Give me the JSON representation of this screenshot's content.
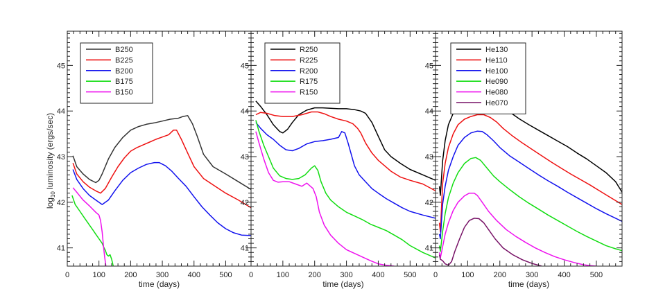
{
  "figure": {
    "ylabel_prefix": "log",
    "ylabel_sub": "10",
    "ylabel_suffix": " luminosity (ergs/sec)"
  },
  "chart_data": [
    {
      "type": "line",
      "title": "",
      "xlabel": "time (days)",
      "ylabel": "log10 luminosity (ergs/sec)",
      "xlim": [
        0,
        580
      ],
      "ylim": [
        40.6,
        45.75
      ],
      "xticks": [
        0,
        100,
        200,
        300,
        400,
        500
      ],
      "yticks": [
        41,
        42,
        43,
        44,
        45
      ],
      "legend_location": "top-left",
      "series": [
        {
          "name": "B250",
          "color": "#333333",
          "x": [
            18,
            30,
            50,
            70,
            90,
            100,
            110,
            130,
            150,
            175,
            200,
            225,
            250,
            275,
            300,
            325,
            350,
            365,
            380,
            395,
            410,
            430,
            460,
            500,
            540,
            580
          ],
          "y": [
            43.02,
            42.78,
            42.62,
            42.5,
            42.43,
            42.48,
            42.62,
            42.95,
            43.2,
            43.42,
            43.58,
            43.66,
            43.71,
            43.74,
            43.78,
            43.82,
            43.84,
            43.88,
            43.9,
            43.72,
            43.45,
            43.05,
            42.78,
            42.62,
            42.45,
            42.28
          ]
        },
        {
          "name": "B225",
          "color": "#ee1111",
          "x": [
            18,
            30,
            50,
            70,
            90,
            105,
            120,
            140,
            160,
            180,
            200,
            220,
            240,
            260,
            280,
            300,
            320,
            335,
            345,
            360,
            380,
            400,
            430,
            460,
            500,
            540,
            580
          ],
          "y": [
            42.86,
            42.62,
            42.45,
            42.33,
            42.25,
            42.2,
            42.3,
            42.55,
            42.78,
            42.97,
            43.12,
            43.2,
            43.26,
            43.32,
            43.38,
            43.43,
            43.48,
            43.58,
            43.58,
            43.38,
            43.08,
            42.78,
            42.52,
            42.38,
            42.2,
            42.05,
            41.88
          ]
        },
        {
          "name": "B200",
          "color": "#1111ee",
          "x": [
            18,
            30,
            50,
            70,
            90,
            110,
            130,
            150,
            175,
            200,
            225,
            250,
            275,
            290,
            310,
            330,
            350,
            375,
            400,
            425,
            450,
            475,
            500,
            525,
            550,
            580
          ],
          "y": [
            42.72,
            42.5,
            42.3,
            42.15,
            42.05,
            41.95,
            42.05,
            42.25,
            42.48,
            42.65,
            42.75,
            42.83,
            42.87,
            42.87,
            42.8,
            42.68,
            42.53,
            42.35,
            42.12,
            41.9,
            41.72,
            41.55,
            41.42,
            41.33,
            41.28,
            41.27
          ]
        },
        {
          "name": "B175",
          "color": "#11dd11",
          "x": [
            15,
            25,
            40,
            55,
            70,
            80,
            90,
            100,
            105,
            110,
            115,
            120,
            125,
            130,
            135,
            140,
            145
          ],
          "y": [
            42.15,
            41.95,
            41.8,
            41.65,
            41.5,
            41.4,
            41.3,
            41.2,
            41.15,
            41.1,
            41.02,
            40.95,
            40.85,
            40.82,
            40.85,
            40.75,
            40.6
          ]
        },
        {
          "name": "B150",
          "color": "#ee11ee",
          "x": [
            18,
            30,
            50,
            70,
            90,
            100,
            105,
            110,
            115,
            118,
            120,
            122
          ],
          "y": [
            42.32,
            42.22,
            42.05,
            41.92,
            41.78,
            41.72,
            41.6,
            41.35,
            41.0,
            40.8,
            40.7,
            40.6
          ]
        }
      ]
    },
    {
      "type": "line",
      "title": "",
      "xlabel": "time (days)",
      "ylabel": "",
      "xlim": [
        0,
        580
      ],
      "ylim": [
        40.6,
        45.75
      ],
      "xticks": [
        0,
        100,
        200,
        300,
        400,
        500
      ],
      "yticks": [
        41,
        42,
        43,
        44,
        45
      ],
      "legend_location": "top-left",
      "series": [
        {
          "name": "R250",
          "color": "#000000",
          "x": [
            15,
            30,
            50,
            70,
            90,
            100,
            115,
            130,
            150,
            175,
            200,
            225,
            250,
            275,
            300,
            325,
            345,
            360,
            380,
            400,
            420,
            440,
            470,
            500,
            540,
            580
          ],
          "y": [
            44.22,
            44.1,
            43.92,
            43.7,
            43.55,
            43.52,
            43.6,
            43.75,
            43.92,
            44.02,
            44.07,
            44.07,
            44.06,
            44.05,
            44.05,
            44.03,
            44.0,
            43.95,
            43.75,
            43.45,
            43.15,
            43.0,
            42.85,
            42.72,
            42.6,
            42.48
          ]
        },
        {
          "name": "R225",
          "color": "#ee1111",
          "x": [
            15,
            30,
            50,
            75,
            100,
            130,
            160,
            190,
            210,
            230,
            250,
            275,
            300,
            320,
            335,
            345,
            360,
            380,
            400,
            420,
            440,
            470,
            500,
            540,
            580
          ],
          "y": [
            43.92,
            43.97,
            43.95,
            43.9,
            43.88,
            43.88,
            43.92,
            43.98,
            43.98,
            43.94,
            43.88,
            43.82,
            43.78,
            43.72,
            43.62,
            43.52,
            43.3,
            43.08,
            42.92,
            42.8,
            42.68,
            42.55,
            42.48,
            42.4,
            42.25
          ]
        },
        {
          "name": "R200",
          "color": "#1111ee",
          "x": [
            15,
            30,
            50,
            70,
            90,
            110,
            130,
            150,
            175,
            200,
            225,
            250,
            275,
            285,
            295,
            305,
            315,
            325,
            340,
            360,
            380,
            400,
            425,
            450,
            475,
            500,
            540,
            580
          ],
          "y": [
            43.75,
            43.62,
            43.48,
            43.38,
            43.25,
            43.15,
            43.13,
            43.18,
            43.28,
            43.33,
            43.35,
            43.38,
            43.42,
            43.55,
            43.52,
            43.3,
            43.05,
            42.8,
            42.6,
            42.45,
            42.3,
            42.2,
            42.08,
            41.98,
            41.88,
            41.8,
            41.72,
            41.65
          ]
        },
        {
          "name": "R175",
          "color": "#11dd11",
          "x": [
            15,
            25,
            40,
            55,
            70,
            90,
            110,
            130,
            150,
            170,
            190,
            200,
            210,
            220,
            235,
            250,
            275,
            300,
            325,
            350,
            375,
            400,
            425,
            450,
            475,
            500,
            540,
            580
          ],
          "y": [
            43.8,
            43.55,
            43.25,
            43.0,
            42.75,
            42.58,
            42.52,
            42.5,
            42.52,
            42.6,
            42.75,
            42.8,
            42.7,
            42.45,
            42.2,
            42.05,
            41.9,
            41.78,
            41.7,
            41.62,
            41.52,
            41.45,
            41.38,
            41.28,
            41.18,
            41.05,
            40.9,
            40.78
          ]
        },
        {
          "name": "R150",
          "color": "#ee11ee",
          "x": [
            15,
            25,
            40,
            55,
            70,
            85,
            100,
            120,
            140,
            160,
            175,
            185,
            195,
            205,
            215,
            230,
            250,
            275,
            300,
            325,
            350,
            375,
            400,
            425,
            450
          ],
          "y": [
            43.55,
            43.3,
            42.95,
            42.65,
            42.48,
            42.44,
            42.45,
            42.45,
            42.4,
            42.35,
            42.42,
            42.36,
            42.3,
            42.12,
            41.78,
            41.5,
            41.28,
            41.1,
            40.96,
            40.88,
            40.8,
            40.72,
            40.65,
            40.62,
            40.6
          ]
        }
      ]
    },
    {
      "type": "line",
      "title": "",
      "xlabel": "time (days)",
      "ylabel": "",
      "xlim": [
        0,
        580
      ],
      "ylim": [
        40.6,
        45.75
      ],
      "xticks": [
        0,
        100,
        200,
        300,
        400,
        500
      ],
      "yticks": [
        41,
        42,
        43,
        44,
        45
      ],
      "legend_location": "top-left",
      "series": [
        {
          "name": "He130",
          "color": "#000000",
          "x": [
            12,
            15,
            22,
            30,
            40,
            55,
            70,
            90,
            110,
            130,
            150,
            170,
            190,
            210,
            230,
            260,
            290,
            320,
            350,
            380,
            410,
            440,
            470,
            500,
            530,
            560,
            580
          ],
          "y": [
            42.35,
            42.15,
            42.9,
            43.35,
            43.7,
            43.95,
            44.1,
            44.2,
            44.26,
            44.3,
            44.31,
            44.29,
            44.22,
            44.1,
            43.98,
            43.83,
            43.7,
            43.58,
            43.46,
            43.34,
            43.22,
            43.08,
            42.95,
            42.8,
            42.65,
            42.45,
            42.22
          ]
        },
        {
          "name": "He110",
          "color": "#ee1111",
          "x": [
            12,
            15,
            22,
            30,
            40,
            55,
            70,
            90,
            110,
            130,
            150,
            170,
            190,
            210,
            240,
            270,
            300,
            330,
            360,
            390,
            420,
            450,
            480,
            510,
            540,
            580
          ],
          "y": [
            41.55,
            41.35,
            42.4,
            42.85,
            43.2,
            43.5,
            43.7,
            43.82,
            43.88,
            43.92,
            43.92,
            43.86,
            43.76,
            43.62,
            43.45,
            43.3,
            43.16,
            43.02,
            42.88,
            42.75,
            42.62,
            42.5,
            42.38,
            42.25,
            42.12,
            41.95
          ]
        },
        {
          "name": "He100",
          "color": "#1111ee",
          "x": [
            12,
            15,
            22,
            30,
            40,
            55,
            70,
            90,
            110,
            130,
            145,
            160,
            180,
            200,
            230,
            260,
            290,
            320,
            350,
            380,
            410,
            440,
            470,
            500,
            530,
            560,
            580
          ],
          "y": [
            41.3,
            41.2,
            41.95,
            42.35,
            42.7,
            43.0,
            43.25,
            43.42,
            43.52,
            43.56,
            43.55,
            43.48,
            43.35,
            43.2,
            43.02,
            42.88,
            42.74,
            42.6,
            42.47,
            42.35,
            42.22,
            42.1,
            41.98,
            41.86,
            41.75,
            41.65,
            41.58
          ]
        },
        {
          "name": "He090",
          "color": "#11dd11",
          "x": [
            12,
            15,
            22,
            30,
            40,
            55,
            70,
            90,
            110,
            125,
            140,
            160,
            180,
            200,
            230,
            260,
            290,
            320,
            350,
            380,
            410,
            440,
            470,
            500,
            530,
            560,
            580
          ],
          "y": [
            41.05,
            40.92,
            41.35,
            41.75,
            42.1,
            42.42,
            42.65,
            42.85,
            42.96,
            42.98,
            42.92,
            42.75,
            42.58,
            42.45,
            42.28,
            42.12,
            41.98,
            41.85,
            41.72,
            41.6,
            41.48,
            41.36,
            41.25,
            41.15,
            41.05,
            40.98,
            40.94
          ]
        },
        {
          "name": "He080",
          "color": "#ee11ee",
          "x": [
            12,
            15,
            22,
            30,
            40,
            55,
            70,
            90,
            105,
            120,
            130,
            145,
            165,
            190,
            220,
            250,
            280,
            310,
            340,
            370,
            400,
            430,
            460,
            480,
            500
          ],
          "y": [
            40.9,
            40.78,
            41.02,
            41.3,
            41.55,
            41.82,
            42.0,
            42.14,
            42.2,
            42.2,
            42.15,
            42.0,
            41.8,
            41.6,
            41.4,
            41.25,
            41.12,
            41.0,
            40.9,
            40.81,
            40.74,
            40.68,
            40.63,
            40.61,
            40.6
          ]
        },
        {
          "name": "He070",
          "color": "#771166",
          "x": [
            12,
            15,
            22,
            30,
            40,
            50,
            60,
            75,
            90,
            105,
            120,
            135,
            150,
            165,
            185,
            210,
            240,
            270,
            300,
            330
          ],
          "y": [
            40.85,
            40.75,
            40.72,
            40.65,
            40.62,
            40.7,
            40.92,
            41.2,
            41.45,
            41.6,
            41.65,
            41.64,
            41.55,
            41.4,
            41.2,
            41.0,
            40.85,
            40.74,
            40.66,
            40.6
          ]
        }
      ]
    }
  ]
}
